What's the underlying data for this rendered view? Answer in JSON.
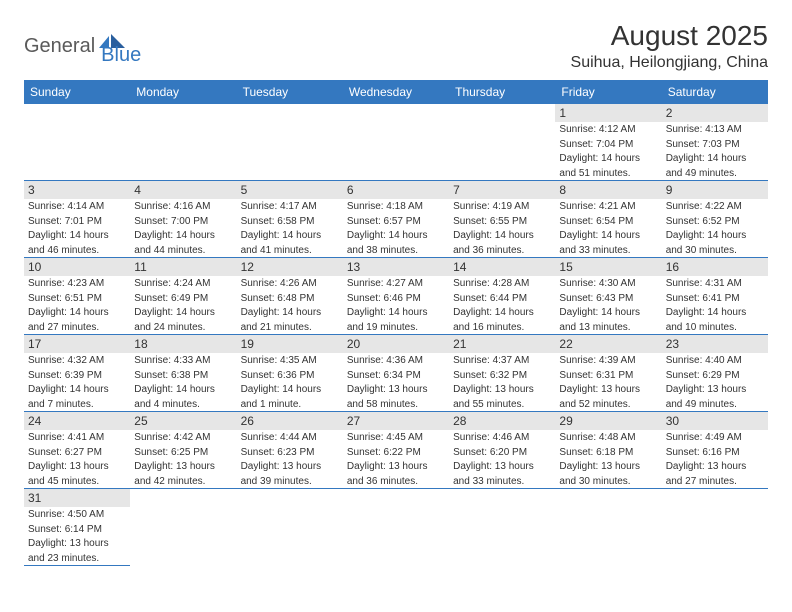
{
  "logo": {
    "general": "General",
    "blue": "Blue"
  },
  "title": "August 2025",
  "location": "Suihua, Heilongjiang, China",
  "colors": {
    "header_bg": "#3478c0",
    "header_text": "#ffffff",
    "daynum_bg": "#e6e6e6",
    "text": "#333333",
    "border": "#3478c0",
    "logo_gray": "#5a5a5a",
    "logo_blue": "#3478c0"
  },
  "day_headers": [
    "Sunday",
    "Monday",
    "Tuesday",
    "Wednesday",
    "Thursday",
    "Friday",
    "Saturday"
  ],
  "weeks": [
    [
      null,
      null,
      null,
      null,
      null,
      {
        "n": "1",
        "sr": "Sunrise: 4:12 AM",
        "ss": "Sunset: 7:04 PM",
        "dl1": "Daylight: 14 hours",
        "dl2": "and 51 minutes."
      },
      {
        "n": "2",
        "sr": "Sunrise: 4:13 AM",
        "ss": "Sunset: 7:03 PM",
        "dl1": "Daylight: 14 hours",
        "dl2": "and 49 minutes."
      }
    ],
    [
      {
        "n": "3",
        "sr": "Sunrise: 4:14 AM",
        "ss": "Sunset: 7:01 PM",
        "dl1": "Daylight: 14 hours",
        "dl2": "and 46 minutes."
      },
      {
        "n": "4",
        "sr": "Sunrise: 4:16 AM",
        "ss": "Sunset: 7:00 PM",
        "dl1": "Daylight: 14 hours",
        "dl2": "and 44 minutes."
      },
      {
        "n": "5",
        "sr": "Sunrise: 4:17 AM",
        "ss": "Sunset: 6:58 PM",
        "dl1": "Daylight: 14 hours",
        "dl2": "and 41 minutes."
      },
      {
        "n": "6",
        "sr": "Sunrise: 4:18 AM",
        "ss": "Sunset: 6:57 PM",
        "dl1": "Daylight: 14 hours",
        "dl2": "and 38 minutes."
      },
      {
        "n": "7",
        "sr": "Sunrise: 4:19 AM",
        "ss": "Sunset: 6:55 PM",
        "dl1": "Daylight: 14 hours",
        "dl2": "and 36 minutes."
      },
      {
        "n": "8",
        "sr": "Sunrise: 4:21 AM",
        "ss": "Sunset: 6:54 PM",
        "dl1": "Daylight: 14 hours",
        "dl2": "and 33 minutes."
      },
      {
        "n": "9",
        "sr": "Sunrise: 4:22 AM",
        "ss": "Sunset: 6:52 PM",
        "dl1": "Daylight: 14 hours",
        "dl2": "and 30 minutes."
      }
    ],
    [
      {
        "n": "10",
        "sr": "Sunrise: 4:23 AM",
        "ss": "Sunset: 6:51 PM",
        "dl1": "Daylight: 14 hours",
        "dl2": "and 27 minutes."
      },
      {
        "n": "11",
        "sr": "Sunrise: 4:24 AM",
        "ss": "Sunset: 6:49 PM",
        "dl1": "Daylight: 14 hours",
        "dl2": "and 24 minutes."
      },
      {
        "n": "12",
        "sr": "Sunrise: 4:26 AM",
        "ss": "Sunset: 6:48 PM",
        "dl1": "Daylight: 14 hours",
        "dl2": "and 21 minutes."
      },
      {
        "n": "13",
        "sr": "Sunrise: 4:27 AM",
        "ss": "Sunset: 6:46 PM",
        "dl1": "Daylight: 14 hours",
        "dl2": "and 19 minutes."
      },
      {
        "n": "14",
        "sr": "Sunrise: 4:28 AM",
        "ss": "Sunset: 6:44 PM",
        "dl1": "Daylight: 14 hours",
        "dl2": "and 16 minutes."
      },
      {
        "n": "15",
        "sr": "Sunrise: 4:30 AM",
        "ss": "Sunset: 6:43 PM",
        "dl1": "Daylight: 14 hours",
        "dl2": "and 13 minutes."
      },
      {
        "n": "16",
        "sr": "Sunrise: 4:31 AM",
        "ss": "Sunset: 6:41 PM",
        "dl1": "Daylight: 14 hours",
        "dl2": "and 10 minutes."
      }
    ],
    [
      {
        "n": "17",
        "sr": "Sunrise: 4:32 AM",
        "ss": "Sunset: 6:39 PM",
        "dl1": "Daylight: 14 hours",
        "dl2": "and 7 minutes."
      },
      {
        "n": "18",
        "sr": "Sunrise: 4:33 AM",
        "ss": "Sunset: 6:38 PM",
        "dl1": "Daylight: 14 hours",
        "dl2": "and 4 minutes."
      },
      {
        "n": "19",
        "sr": "Sunrise: 4:35 AM",
        "ss": "Sunset: 6:36 PM",
        "dl1": "Daylight: 14 hours",
        "dl2": "and 1 minute."
      },
      {
        "n": "20",
        "sr": "Sunrise: 4:36 AM",
        "ss": "Sunset: 6:34 PM",
        "dl1": "Daylight: 13 hours",
        "dl2": "and 58 minutes."
      },
      {
        "n": "21",
        "sr": "Sunrise: 4:37 AM",
        "ss": "Sunset: 6:32 PM",
        "dl1": "Daylight: 13 hours",
        "dl2": "and 55 minutes."
      },
      {
        "n": "22",
        "sr": "Sunrise: 4:39 AM",
        "ss": "Sunset: 6:31 PM",
        "dl1": "Daylight: 13 hours",
        "dl2": "and 52 minutes."
      },
      {
        "n": "23",
        "sr": "Sunrise: 4:40 AM",
        "ss": "Sunset: 6:29 PM",
        "dl1": "Daylight: 13 hours",
        "dl2": "and 49 minutes."
      }
    ],
    [
      {
        "n": "24",
        "sr": "Sunrise: 4:41 AM",
        "ss": "Sunset: 6:27 PM",
        "dl1": "Daylight: 13 hours",
        "dl2": "and 45 minutes."
      },
      {
        "n": "25",
        "sr": "Sunrise: 4:42 AM",
        "ss": "Sunset: 6:25 PM",
        "dl1": "Daylight: 13 hours",
        "dl2": "and 42 minutes."
      },
      {
        "n": "26",
        "sr": "Sunrise: 4:44 AM",
        "ss": "Sunset: 6:23 PM",
        "dl1": "Daylight: 13 hours",
        "dl2": "and 39 minutes."
      },
      {
        "n": "27",
        "sr": "Sunrise: 4:45 AM",
        "ss": "Sunset: 6:22 PM",
        "dl1": "Daylight: 13 hours",
        "dl2": "and 36 minutes."
      },
      {
        "n": "28",
        "sr": "Sunrise: 4:46 AM",
        "ss": "Sunset: 6:20 PM",
        "dl1": "Daylight: 13 hours",
        "dl2": "and 33 minutes."
      },
      {
        "n": "29",
        "sr": "Sunrise: 4:48 AM",
        "ss": "Sunset: 6:18 PM",
        "dl1": "Daylight: 13 hours",
        "dl2": "and 30 minutes."
      },
      {
        "n": "30",
        "sr": "Sunrise: 4:49 AM",
        "ss": "Sunset: 6:16 PM",
        "dl1": "Daylight: 13 hours",
        "dl2": "and 27 minutes."
      }
    ],
    [
      {
        "n": "31",
        "sr": "Sunrise: 4:50 AM",
        "ss": "Sunset: 6:14 PM",
        "dl1": "Daylight: 13 hours",
        "dl2": "and 23 minutes."
      },
      null,
      null,
      null,
      null,
      null,
      null
    ]
  ]
}
